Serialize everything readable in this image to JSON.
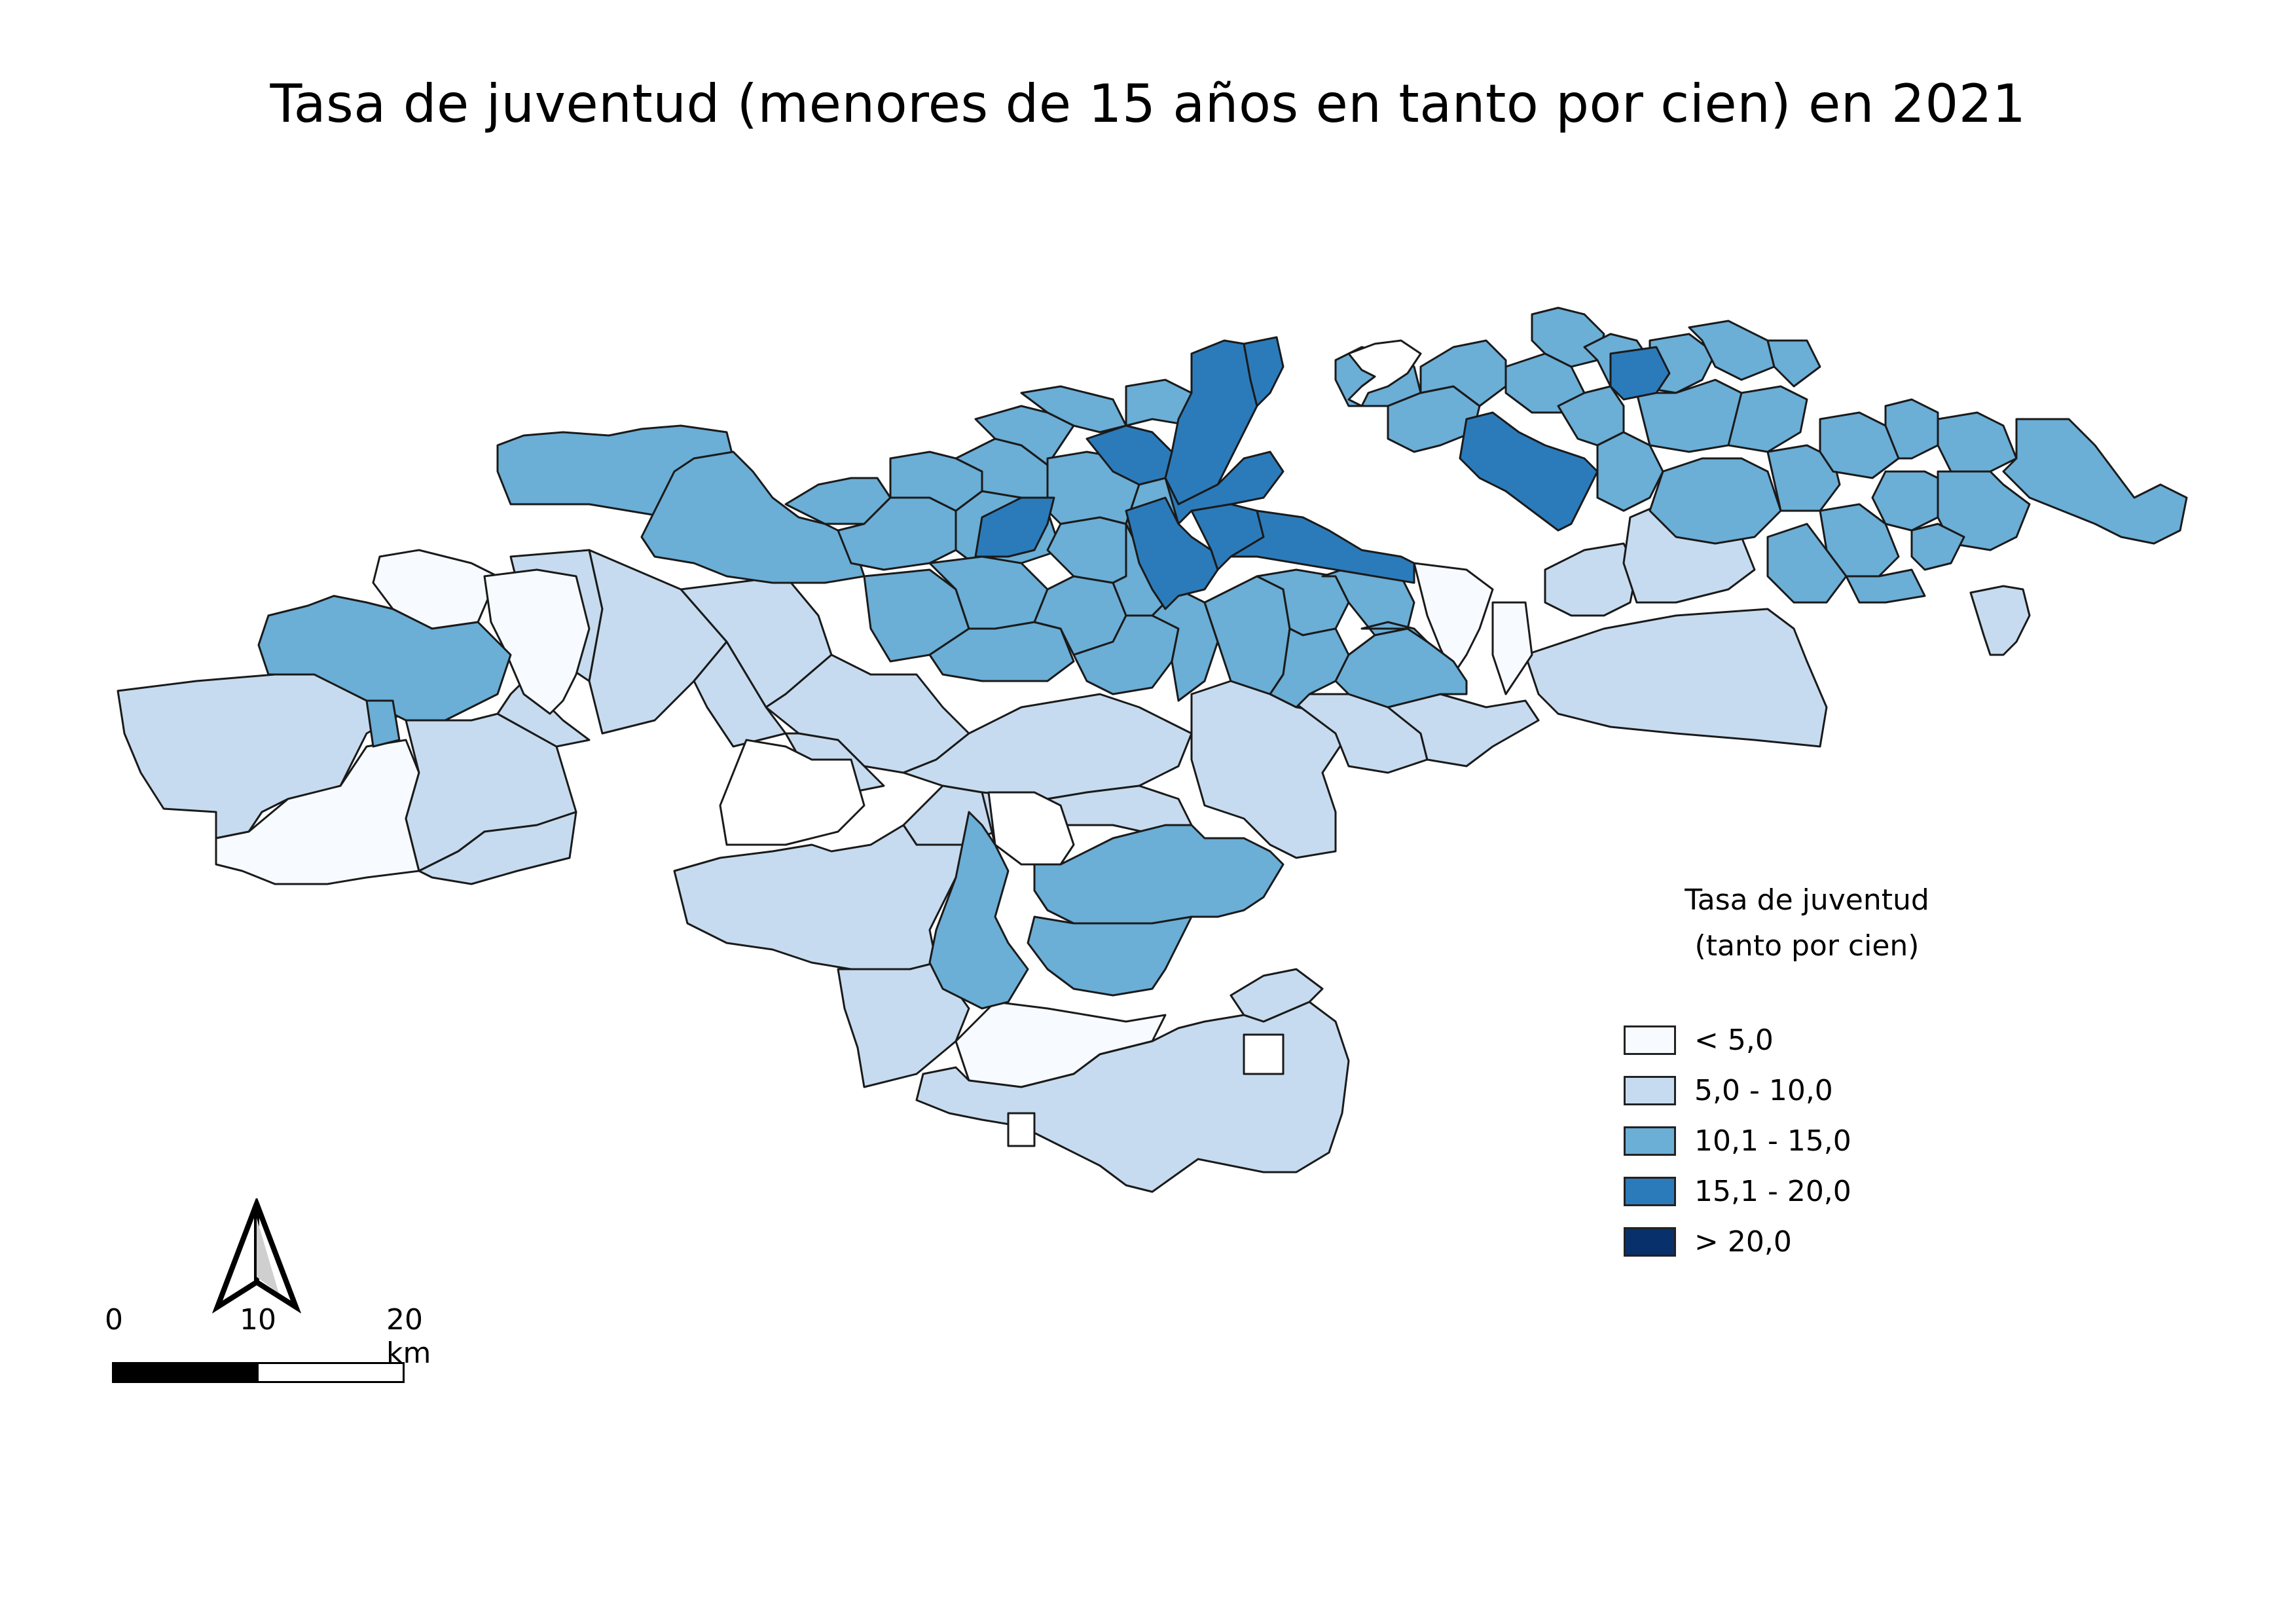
{
  "title": "Tasa de juventud (menores de 15 años en tanto por cien) en 2021",
  "legend": {
    "title_line1": "Tasa de juventud",
    "title_line2": "(tanto por cien)",
    "classes": [
      {
        "label": "< 5,0",
        "color": "#f7fbff"
      },
      {
        "label": "5,0 - 10,0",
        "color": "#c6dbef"
      },
      {
        "label": "10,1 - 15,0",
        "color": "#6baed6"
      },
      {
        "label": "15,1 - 20,0",
        "color": "#2b7bba"
      },
      {
        "label": "> 20,0",
        "color": "#08306b"
      }
    ]
  },
  "scalebar": {
    "label_0": "0",
    "label_mid": "10",
    "label_end": "20 km"
  },
  "north_arrow": {
    "icon": "north-arrow-icon"
  },
  "map": {
    "stroke_color": "#1a1a1a",
    "background": "#ffffff"
  }
}
